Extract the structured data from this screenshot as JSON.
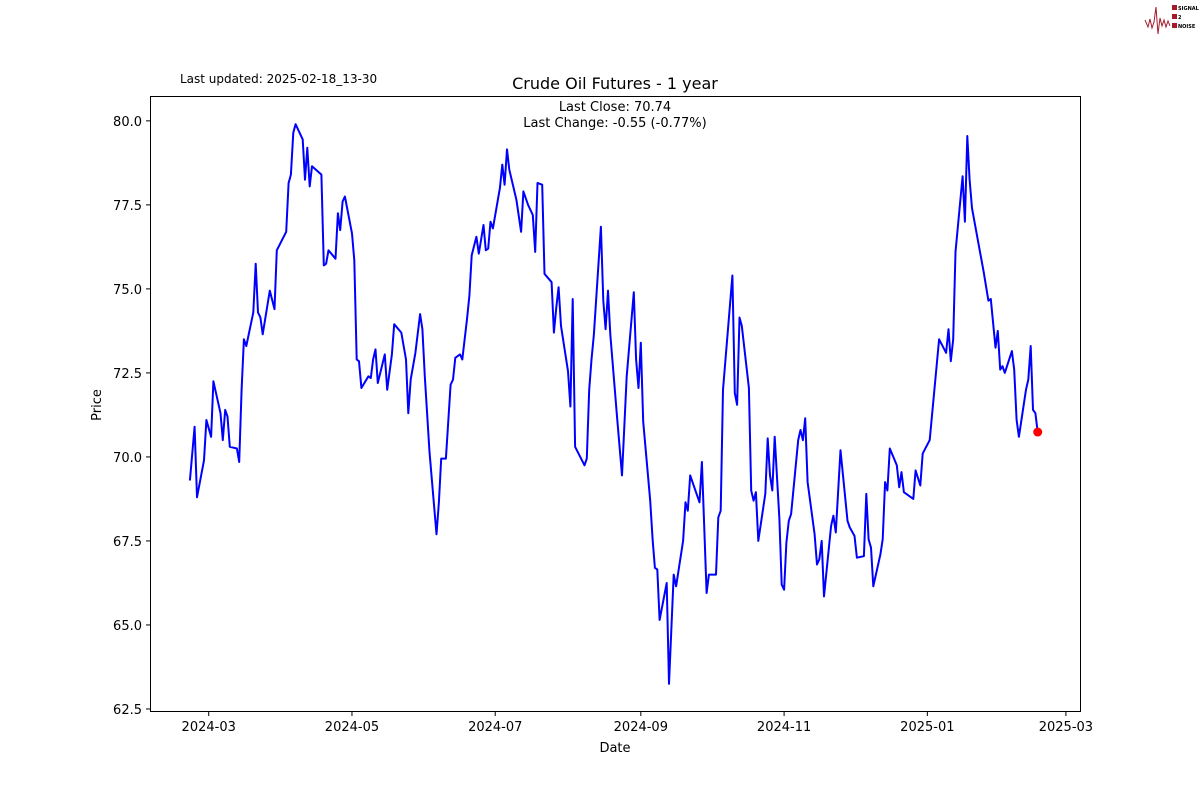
{
  "chart_data": {
    "type": "line",
    "title": "Crude Oil Futures - 1 year",
    "annotation_lines": [
      "Last Close: 70.74",
      "Last Change: -0.55 (-0.77%)"
    ],
    "last_updated": "Last updated: 2025-02-18_13-30",
    "xlabel": "Date",
    "ylabel": "Price",
    "xlim": [
      "2024-02-05",
      "2025-03-07"
    ],
    "ylim": [
      62.41,
      80.74
    ],
    "x_ticks": [
      "2024-03",
      "2024-05",
      "2024-07",
      "2024-09",
      "2024-11",
      "2025-01",
      "2025-03"
    ],
    "y_ticks": [
      62.5,
      65.0,
      67.5,
      70.0,
      72.5,
      75.0,
      77.5,
      80.0
    ],
    "y_tick_labels": [
      "62.5",
      "65.0",
      "67.5",
      "70.0",
      "72.5",
      "75.0",
      "77.5",
      "80.0"
    ],
    "grid": false,
    "line_color": "#0000ff",
    "marker_color": "#ff0000",
    "last_point": {
      "date": "2025-02-17",
      "value": 70.74
    },
    "series": [
      {
        "points": [
          [
            "2024-02-22",
            69.3
          ],
          [
            "2024-02-24",
            70.9
          ],
          [
            "2024-02-25",
            68.8
          ],
          [
            "2024-02-28",
            69.9
          ],
          [
            "2024-02-29",
            71.1
          ],
          [
            "2024-03-02",
            70.6
          ],
          [
            "2024-03-03",
            72.25
          ],
          [
            "2024-03-06",
            71.3
          ],
          [
            "2024-03-07",
            70.5
          ],
          [
            "2024-03-08",
            71.4
          ],
          [
            "2024-03-09",
            71.2
          ],
          [
            "2024-03-10",
            70.3
          ],
          [
            "2024-03-13",
            70.25
          ],
          [
            "2024-03-14",
            69.85
          ],
          [
            "2024-03-15",
            72.0
          ],
          [
            "2024-03-16",
            73.5
          ],
          [
            "2024-03-17",
            73.3
          ],
          [
            "2024-03-20",
            74.3
          ],
          [
            "2024-03-21",
            75.75
          ],
          [
            "2024-03-22",
            74.3
          ],
          [
            "2024-03-23",
            74.15
          ],
          [
            "2024-03-24",
            73.65
          ],
          [
            "2024-03-27",
            74.95
          ],
          [
            "2024-03-29",
            74.4
          ],
          [
            "2024-03-30",
            76.15
          ],
          [
            "2024-04-03",
            76.7
          ],
          [
            "2024-04-04",
            78.15
          ],
          [
            "2024-04-05",
            78.4
          ],
          [
            "2024-04-06",
            79.65
          ],
          [
            "2024-04-07",
            79.9
          ],
          [
            "2024-04-10",
            79.45
          ],
          [
            "2024-04-11",
            78.25
          ],
          [
            "2024-04-12",
            79.2
          ],
          [
            "2024-04-13",
            78.05
          ],
          [
            "2024-04-14",
            78.65
          ],
          [
            "2024-04-18",
            78.4
          ],
          [
            "2024-04-19",
            75.7
          ],
          [
            "2024-04-20",
            75.75
          ],
          [
            "2024-04-21",
            76.15
          ],
          [
            "2024-04-24",
            75.9
          ],
          [
            "2024-04-25",
            77.25
          ],
          [
            "2024-04-26",
            76.75
          ],
          [
            "2024-04-27",
            77.6
          ],
          [
            "2024-04-28",
            77.75
          ],
          [
            "2024-05-01",
            76.65
          ],
          [
            "2024-05-02",
            75.85
          ],
          [
            "2024-05-03",
            72.9
          ],
          [
            "2024-05-04",
            72.85
          ],
          [
            "2024-05-05",
            72.05
          ],
          [
            "2024-05-08",
            72.4
          ],
          [
            "2024-05-09",
            72.35
          ],
          [
            "2024-05-10",
            72.9
          ],
          [
            "2024-05-11",
            73.2
          ],
          [
            "2024-05-12",
            72.2
          ],
          [
            "2024-05-15",
            73.05
          ],
          [
            "2024-05-16",
            72.0
          ],
          [
            "2024-05-18",
            73.05
          ],
          [
            "2024-05-19",
            73.95
          ],
          [
            "2024-05-22",
            73.7
          ],
          [
            "2024-05-24",
            72.9
          ],
          [
            "2024-05-25",
            71.3
          ],
          [
            "2024-05-26",
            72.3
          ],
          [
            "2024-05-28",
            73.1
          ],
          [
            "2024-05-30",
            74.25
          ],
          [
            "2024-05-31",
            73.8
          ],
          [
            "2024-06-01",
            72.4
          ],
          [
            "2024-06-03",
            70.15
          ],
          [
            "2024-06-06",
            67.7
          ],
          [
            "2024-06-07",
            68.65
          ],
          [
            "2024-06-08",
            69.95
          ],
          [
            "2024-06-10",
            69.95
          ],
          [
            "2024-06-12",
            72.15
          ],
          [
            "2024-06-13",
            72.3
          ],
          [
            "2024-06-14",
            72.95
          ],
          [
            "2024-06-16",
            73.05
          ],
          [
            "2024-06-17",
            72.9
          ],
          [
            "2024-06-19",
            74.1
          ],
          [
            "2024-06-20",
            74.8
          ],
          [
            "2024-06-21",
            76.0
          ],
          [
            "2024-06-23",
            76.55
          ],
          [
            "2024-06-24",
            76.05
          ],
          [
            "2024-06-26",
            76.9
          ],
          [
            "2024-06-27",
            76.15
          ],
          [
            "2024-06-28",
            76.2
          ],
          [
            "2024-06-29",
            77.0
          ],
          [
            "2024-06-30",
            76.8
          ],
          [
            "2024-07-03",
            78.0
          ],
          [
            "2024-07-04",
            78.7
          ],
          [
            "2024-07-05",
            78.1
          ],
          [
            "2024-07-06",
            79.15
          ],
          [
            "2024-07-07",
            78.55
          ],
          [
            "2024-07-10",
            77.65
          ],
          [
            "2024-07-12",
            76.7
          ],
          [
            "2024-07-13",
            77.9
          ],
          [
            "2024-07-15",
            77.5
          ],
          [
            "2024-07-17",
            77.2
          ],
          [
            "2024-07-18",
            76.1
          ],
          [
            "2024-07-19",
            78.15
          ],
          [
            "2024-07-21",
            78.1
          ],
          [
            "2024-07-22",
            75.45
          ],
          [
            "2024-07-25",
            75.2
          ],
          [
            "2024-07-26",
            73.7
          ],
          [
            "2024-07-27",
            74.45
          ],
          [
            "2024-07-28",
            75.05
          ],
          [
            "2024-07-29",
            73.9
          ],
          [
            "2024-08-01",
            72.55
          ],
          [
            "2024-08-02",
            71.5
          ],
          [
            "2024-08-03",
            74.7
          ],
          [
            "2024-08-04",
            70.3
          ],
          [
            "2024-08-08",
            69.75
          ],
          [
            "2024-08-09",
            69.95
          ],
          [
            "2024-08-10",
            72.0
          ],
          [
            "2024-08-11",
            72.9
          ],
          [
            "2024-08-12",
            73.65
          ],
          [
            "2024-08-15",
            76.85
          ],
          [
            "2024-08-16",
            74.65
          ],
          [
            "2024-08-17",
            73.8
          ],
          [
            "2024-08-18",
            74.95
          ],
          [
            "2024-08-19",
            73.65
          ],
          [
            "2024-08-22",
            71.1
          ],
          [
            "2024-08-24",
            69.45
          ],
          [
            "2024-08-26",
            72.4
          ],
          [
            "2024-08-29",
            74.9
          ],
          [
            "2024-08-30",
            72.9
          ],
          [
            "2024-08-31",
            72.05
          ],
          [
            "2024-09-01",
            73.4
          ],
          [
            "2024-09-02",
            71.05
          ],
          [
            "2024-09-05",
            68.7
          ],
          [
            "2024-09-06",
            67.55
          ],
          [
            "2024-09-07",
            66.7
          ],
          [
            "2024-09-08",
            66.65
          ],
          [
            "2024-09-09",
            65.15
          ],
          [
            "2024-09-12",
            66.25
          ],
          [
            "2024-09-13",
            63.25
          ],
          [
            "2024-09-15",
            66.5
          ],
          [
            "2024-09-16",
            66.15
          ],
          [
            "2024-09-19",
            67.5
          ],
          [
            "2024-09-20",
            68.65
          ],
          [
            "2024-09-21",
            68.4
          ],
          [
            "2024-09-22",
            69.45
          ],
          [
            "2024-09-26",
            68.65
          ],
          [
            "2024-09-27",
            69.85
          ],
          [
            "2024-09-29",
            65.95
          ],
          [
            "2024-09-30",
            66.5
          ],
          [
            "2024-10-03",
            66.5
          ],
          [
            "2024-10-04",
            68.2
          ],
          [
            "2024-10-05",
            68.4
          ],
          [
            "2024-10-06",
            72.0
          ],
          [
            "2024-10-10",
            75.4
          ],
          [
            "2024-10-11",
            71.9
          ],
          [
            "2024-10-12",
            71.55
          ],
          [
            "2024-10-13",
            74.15
          ],
          [
            "2024-10-14",
            73.9
          ],
          [
            "2024-10-17",
            72.05
          ],
          [
            "2024-10-18",
            69.0
          ],
          [
            "2024-10-19",
            68.7
          ],
          [
            "2024-10-20",
            68.95
          ],
          [
            "2024-10-21",
            67.5
          ],
          [
            "2024-10-24",
            68.9
          ],
          [
            "2024-10-25",
            70.55
          ],
          [
            "2024-10-26",
            69.45
          ],
          [
            "2024-10-27",
            69.0
          ],
          [
            "2024-10-28",
            70.6
          ],
          [
            "2024-10-30",
            68.15
          ],
          [
            "2024-10-31",
            66.2
          ],
          [
            "2024-11-01",
            66.05
          ],
          [
            "2024-11-02",
            67.45
          ],
          [
            "2024-11-03",
            68.1
          ],
          [
            "2024-11-04",
            68.3
          ],
          [
            "2024-11-07",
            70.5
          ],
          [
            "2024-11-08",
            70.8
          ],
          [
            "2024-11-09",
            70.5
          ],
          [
            "2024-11-10",
            71.15
          ],
          [
            "2024-11-11",
            69.25
          ],
          [
            "2024-11-14",
            67.7
          ],
          [
            "2024-11-15",
            66.8
          ],
          [
            "2024-11-16",
            66.95
          ],
          [
            "2024-11-17",
            67.5
          ],
          [
            "2024-11-18",
            65.85
          ],
          [
            "2024-11-21",
            67.95
          ],
          [
            "2024-11-22",
            68.25
          ],
          [
            "2024-11-23",
            67.75
          ],
          [
            "2024-11-25",
            70.2
          ],
          [
            "2024-11-28",
            68.1
          ],
          [
            "2024-11-29",
            67.9
          ],
          [
            "2024-12-01",
            67.65
          ],
          [
            "2024-12-02",
            67.0
          ],
          [
            "2024-12-05",
            67.05
          ],
          [
            "2024-12-06",
            68.9
          ],
          [
            "2024-12-07",
            67.55
          ],
          [
            "2024-12-08",
            67.3
          ],
          [
            "2024-12-09",
            66.15
          ],
          [
            "2024-12-12",
            67.1
          ],
          [
            "2024-12-13",
            67.55
          ],
          [
            "2024-12-14",
            69.25
          ],
          [
            "2024-12-15",
            69.0
          ],
          [
            "2024-12-16",
            70.25
          ],
          [
            "2024-12-19",
            69.75
          ],
          [
            "2024-12-20",
            69.1
          ],
          [
            "2024-12-21",
            69.55
          ],
          [
            "2024-12-22",
            68.95
          ],
          [
            "2024-12-26",
            68.75
          ],
          [
            "2024-12-27",
            69.6
          ],
          [
            "2024-12-29",
            69.15
          ],
          [
            "2024-12-30",
            70.1
          ],
          [
            "2025-01-02",
            70.5
          ],
          [
            "2025-01-06",
            73.5
          ],
          [
            "2025-01-09",
            73.1
          ],
          [
            "2025-01-10",
            73.8
          ],
          [
            "2025-01-11",
            72.85
          ],
          [
            "2025-01-12",
            73.5
          ],
          [
            "2025-01-13",
            76.1
          ],
          [
            "2025-01-16",
            78.35
          ],
          [
            "2025-01-17",
            77.0
          ],
          [
            "2025-01-18",
            79.55
          ],
          [
            "2025-01-19",
            78.25
          ],
          [
            "2025-01-20",
            77.4
          ],
          [
            "2025-01-25",
            75.5
          ],
          [
            "2025-01-27",
            74.65
          ],
          [
            "2025-01-28",
            74.7
          ],
          [
            "2025-01-30",
            73.25
          ],
          [
            "2025-01-31",
            73.75
          ],
          [
            "2025-02-01",
            72.6
          ],
          [
            "2025-02-02",
            72.7
          ],
          [
            "2025-02-03",
            72.5
          ],
          [
            "2025-02-06",
            73.15
          ],
          [
            "2025-02-07",
            72.6
          ],
          [
            "2025-02-08",
            71.1
          ],
          [
            "2025-02-09",
            70.6
          ],
          [
            "2025-02-12",
            72.0
          ],
          [
            "2025-02-13",
            72.3
          ],
          [
            "2025-02-14",
            73.3
          ],
          [
            "2025-02-15",
            71.4
          ],
          [
            "2025-02-16",
            71.3
          ],
          [
            "2025-02-17",
            70.74
          ]
        ]
      }
    ]
  },
  "logo": {
    "lines": [
      "SIGNAL",
      "2",
      "NOISE"
    ],
    "color": "#a31c2b"
  }
}
